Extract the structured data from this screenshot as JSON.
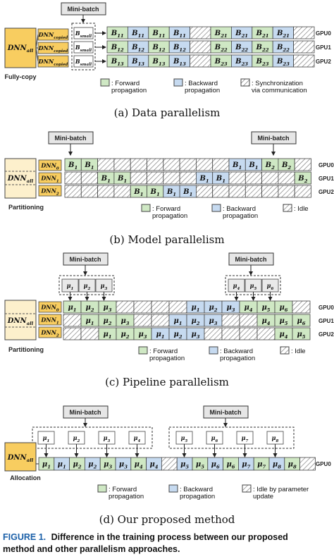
{
  "colors": {
    "forward": "#cfe8c4",
    "backward": "#c6daf0",
    "dnn": "#f8cd60",
    "dnn_light": "#fdf0cc",
    "caption_blue": "#1a5fa8"
  },
  "icons": [
    "down-arrow-icon",
    "right-arrow-icon",
    "hatched-swatch-icon"
  ],
  "a": {
    "minibatch": "Mini-batch",
    "dnn_all": "DNN_all",
    "dnn_copies": [
      "DNN_copied",
      "DNN_copied",
      "DNN_copied"
    ],
    "small_batches": [
      "B_small",
      "B_small",
      "B_small"
    ],
    "label": "Fully-copy",
    "gpus": [
      "GPU0",
      "GPU1",
      "GPU2"
    ],
    "rows": [
      [
        "B11",
        "B11",
        "B11",
        "B11",
        "",
        "B21",
        "B21",
        "B21",
        "B21",
        ""
      ],
      [
        "B12",
        "B12",
        "B12",
        "B12",
        "",
        "B22",
        "B22",
        "B22",
        "B22",
        ""
      ],
      [
        "B13",
        "B13",
        "B13",
        "B13",
        "",
        "B23",
        "B23",
        "B23",
        "B23",
        ""
      ]
    ],
    "legend": {
      "forward": ": Forward propagation",
      "backward": ": Backward propagation",
      "sync": ": Synchronization via communication"
    },
    "caption": "(a) Data parallelism"
  },
  "b": {
    "minibatch_left": "Mini-batch",
    "minibatch_right": "Mini-batch",
    "dnn_all": "DNN_all",
    "parts": [
      "DNN0",
      "DNN1",
      "DNN2"
    ],
    "label": "Partitioning",
    "gpus": [
      "GPU0",
      "GPU1",
      "GPU2"
    ],
    "rows": [
      [
        "B1",
        "B1",
        "",
        "",
        "",
        "",
        "",
        "",
        "",
        "",
        "B1",
        "B1",
        "B2",
        "B2",
        ""
      ],
      [
        "",
        "",
        "B1",
        "B1",
        "",
        "",
        "",
        "",
        "B1",
        "B1",
        "",
        "",
        "",
        "",
        "B2"
      ],
      [
        "",
        "",
        "",
        "",
        "B1",
        "B1",
        "B1",
        "B1",
        "",
        "",
        "",
        "",
        "",
        "",
        ""
      ]
    ],
    "legend": {
      "forward": ": Forward propagation",
      "backward": ": Backward propagation",
      "idle": ": Idle"
    },
    "caption": "(b) Model parallelism"
  },
  "c": {
    "minibatch_left": "Mini-batch",
    "minibatch_right": "Mini-batch",
    "micro_left": [
      "μ1",
      "μ2",
      "μ3"
    ],
    "micro_right": [
      "μ4",
      "μ5",
      "μ6"
    ],
    "dnn_all": "DNN_all",
    "parts": [
      "DNN0",
      "DNN1",
      "DNN2"
    ],
    "label": "Partitioning",
    "gpus": [
      "GPU0",
      "GPU1",
      "GPU2"
    ],
    "rows": [
      [
        "μ1",
        "μ2",
        "μ3",
        "",
        "",
        "",
        "",
        "μ1",
        "μ2",
        "μ3",
        "μ4",
        "μ5",
        "μ6",
        ""
      ],
      [
        "",
        "μ1",
        "μ2",
        "μ3",
        "",
        "",
        "μ1",
        "μ2",
        "μ3",
        "",
        "",
        "μ4",
        "μ5",
        "μ6"
      ],
      [
        "",
        "",
        "μ1",
        "μ2",
        "μ3",
        "μ1",
        "μ2",
        "μ3",
        "",
        "",
        "",
        "",
        "μ4",
        "μ5"
      ]
    ],
    "legend": {
      "forward": ": Forward propagation",
      "backward": ": Backward propagation",
      "idle": ": Idle"
    },
    "caption": "(c) Pipeline parallelism"
  },
  "d": {
    "minibatch_left": "Mini-batch",
    "minibatch_right": "Mini-batch",
    "micro_left": [
      "μ1",
      "μ2",
      "μ3",
      "μ4"
    ],
    "micro_right": [
      "μ5",
      "μ6",
      "μ7",
      "μ8"
    ],
    "dnn_all": "DNN_all",
    "label": "Allocation",
    "gpus": [
      "GPU0"
    ],
    "row": [
      "μ1",
      "μ1",
      "μ2",
      "μ2",
      "μ3",
      "μ3",
      "μ4",
      "μ4",
      "",
      "μ5",
      "μ5",
      "μ6",
      "μ6",
      "μ7",
      "μ7",
      "μ8",
      "μ8",
      ""
    ],
    "legend": {
      "forward": ": Forward propagation",
      "backward": ": Backward propagation",
      "idle": ": Idle by parameter update"
    },
    "caption": "(d) Our proposed method"
  },
  "figure": {
    "label": "FIGURE 1.",
    "text_line1": "Difference in the training process between our proposed",
    "text_line2": "method and other parallelism approaches."
  }
}
